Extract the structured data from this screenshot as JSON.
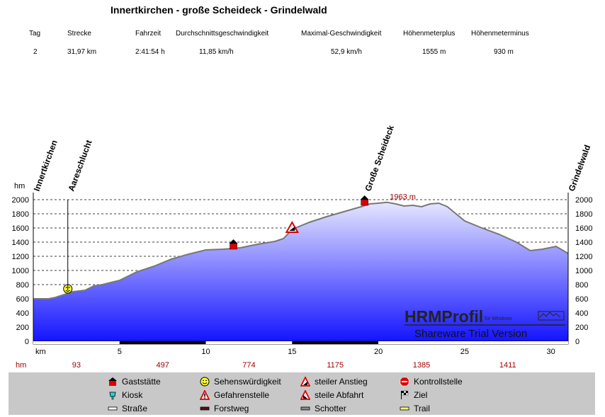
{
  "title": "Innertkirchen - große Scheideck - Grindelwald",
  "stats": {
    "headers": [
      "Tag",
      "Strecke",
      "Fahrzeit",
      "Durchschnittsgeschwindigkeit",
      "Maximal-Geschwindigkeit",
      "Höhenmeterplus",
      "Höhenmeterminus"
    ],
    "values": [
      "2",
      "31,97 km",
      "2:41:54 h",
      "11,85 km/h",
      "52,9 km/h",
      "1555 m",
      "930 m"
    ]
  },
  "chart_data": {
    "type": "area",
    "ylabel": "hm",
    "xlabel": "km",
    "ylim": [
      0,
      2000
    ],
    "xlim": [
      0,
      31
    ],
    "y_ticks": [
      0,
      200,
      400,
      600,
      800,
      1000,
      1200,
      1400,
      1600,
      1800,
      2000
    ],
    "x_ticks": [
      5,
      10,
      15,
      20,
      25,
      30
    ],
    "grid": true,
    "x": [
      0,
      0.9,
      1.3,
      1.8,
      2.3,
      3.0,
      3.5,
      4.0,
      5.0,
      6.0,
      7.0,
      8.0,
      9.0,
      10.0,
      11.0,
      12.0,
      13.0,
      13.5,
      14.0,
      14.5,
      15.0,
      16.0,
      17.0,
      18.0,
      19.0,
      19.5,
      20.0,
      20.5,
      21.0,
      21.5,
      22.0,
      22.5,
      23.0,
      23.5,
      24.0,
      24.5,
      25.0,
      26.0,
      27.0,
      28.0,
      28.8,
      29.5,
      30.3,
      31.0
    ],
    "y": [
      600,
      600,
      620,
      660,
      700,
      720,
      780,
      800,
      860,
      980,
      1060,
      1160,
      1230,
      1290,
      1300,
      1320,
      1370,
      1390,
      1410,
      1450,
      1580,
      1680,
      1760,
      1830,
      1900,
      1940,
      1950,
      1963,
      1940,
      1910,
      1920,
      1900,
      1940,
      1950,
      1900,
      1800,
      1700,
      1600,
      1510,
      1400,
      1280,
      1300,
      1340,
      1240
    ],
    "peak_label": "1963 m",
    "places": [
      {
        "name": "Innertkirchen",
        "km": 0
      },
      {
        "name": "Aareschlucht",
        "km": 2.0
      },
      {
        "name": "Große Scheideck",
        "km": 19.2
      },
      {
        "name": "Grindelwald",
        "km": 31.0
      }
    ],
    "markers": [
      {
        "type": "sight",
        "km": 2.0,
        "hm": 720
      },
      {
        "type": "inn",
        "km": 11.6,
        "hm": 1340
      },
      {
        "type": "ascent",
        "km": 15.0,
        "hm": 1590
      },
      {
        "type": "inn",
        "km": 19.2,
        "hm": 1960
      }
    ],
    "hm_row": {
      "label": "hm",
      "values": [
        "93",
        "497",
        "774",
        "1175",
        "1385",
        "1411"
      ],
      "km": [
        2.5,
        7.5,
        12.5,
        17.5,
        22.5,
        27.5
      ]
    },
    "surface": [
      {
        "from": 0,
        "to": 5,
        "type": "road"
      },
      {
        "from": 5,
        "to": 10,
        "type": "forest"
      },
      {
        "from": 10,
        "to": 15,
        "type": "road"
      },
      {
        "from": 15,
        "to": 20,
        "type": "forest"
      },
      {
        "from": 20,
        "to": 31,
        "type": "road"
      }
    ]
  },
  "watermark": {
    "brand": "HRMProfil",
    "sub": "für Windows",
    "trial": "Shareware Trial  Version"
  },
  "legend": [
    {
      "label": "Gaststätte",
      "icon": "inn-icon"
    },
    {
      "label": "Sehenswürdigkeit",
      "icon": "smiley-icon"
    },
    {
      "label": "steiler Anstieg",
      "icon": "ascent-warning-icon"
    },
    {
      "label": "Kontrollstelle",
      "icon": "stop-icon"
    },
    {
      "label": "Kiosk",
      "icon": "kiosk-icon"
    },
    {
      "label": "Gefahrenstelle",
      "icon": "danger-icon"
    },
    {
      "label": "steile Abfahrt",
      "icon": "descent-warning-icon"
    },
    {
      "label": "Ziel",
      "icon": "finish-flag-icon"
    },
    {
      "label": "Straße",
      "icon": "road-swatch-icon"
    },
    {
      "label": "Forstweg",
      "icon": "forest-swatch-icon"
    },
    {
      "label": "Schotter",
      "icon": "gravel-swatch-icon"
    },
    {
      "label": "Trail",
      "icon": "trail-swatch-icon"
    }
  ],
  "colors": {
    "area_top": "#e6e6ff",
    "area_bottom": "#1414ff",
    "profile_line": "#777777",
    "peak_label": "#a00000",
    "hm_row": "#a00000",
    "legend_bg": "#c8c8c8"
  }
}
